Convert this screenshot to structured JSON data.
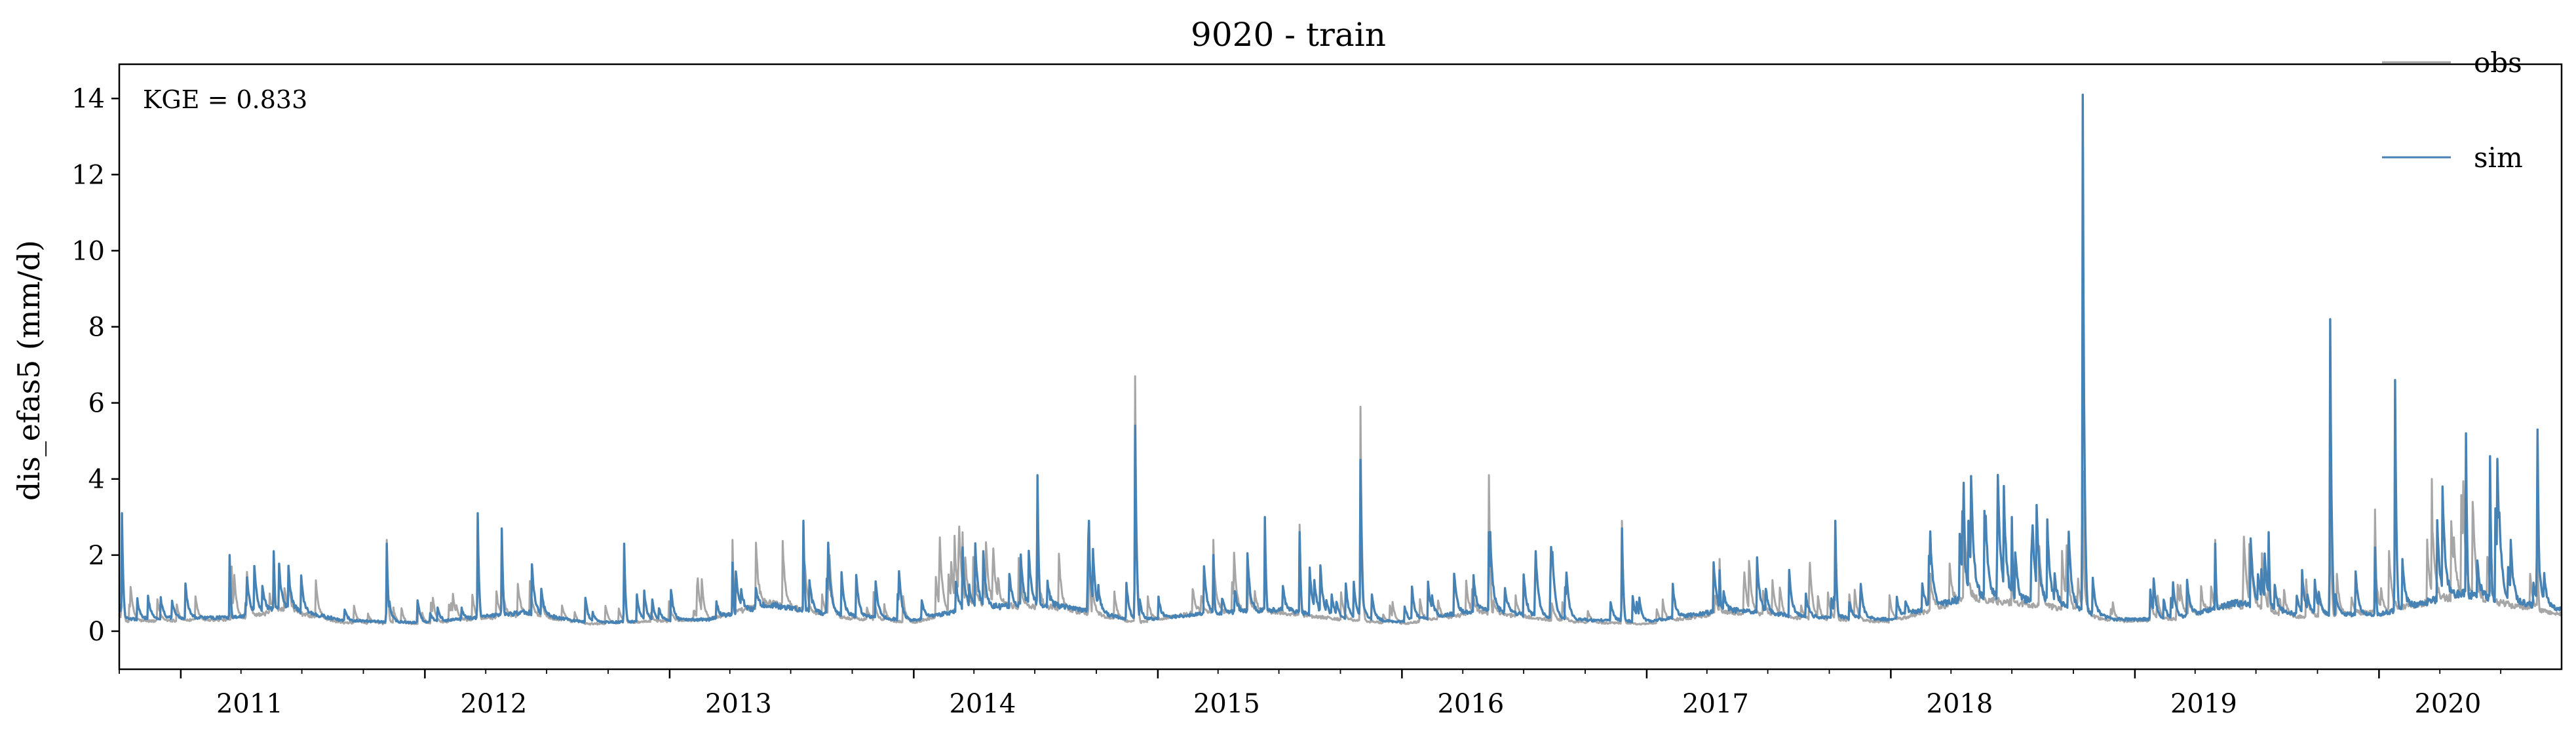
{
  "chart_data": {
    "type": "line",
    "title": "9020 - train",
    "ylabel": "dis_efas5 (mm/d)",
    "xlabel": "",
    "annotation": "KGE = 0.833",
    "ylim": [
      -1.0,
      14.9
    ],
    "xlim": [
      "2010-10-01",
      "2020-09-30"
    ],
    "yticks": [
      0,
      2,
      4,
      6,
      8,
      10,
      12,
      14
    ],
    "xticks": [
      "2011",
      "2012",
      "2013",
      "2014",
      "2015",
      "2016",
      "2017",
      "2018",
      "2019",
      "2020"
    ],
    "legend_position": "top-right",
    "grid": false,
    "series": [
      {
        "name": "obs",
        "color": "#a6a6a6",
        "baseline": [
          [
            "2010-10-01",
            0.4
          ],
          [
            "2011-04-01",
            0.5
          ],
          [
            "2011-06-01",
            0.9
          ],
          [
            "2011-09-01",
            0.35
          ],
          [
            "2012-01-01",
            0.3
          ],
          [
            "2012-06-01",
            0.7
          ],
          [
            "2012-09-01",
            0.3
          ],
          [
            "2013-03-01",
            0.5
          ],
          [
            "2013-06-01",
            1.2
          ],
          [
            "2013-09-01",
            0.6
          ],
          [
            "2014-01-01",
            0.35
          ],
          [
            "2014-04-01",
            1.1
          ],
          [
            "2014-08-01",
            1.0
          ],
          [
            "2014-12-01",
            0.35
          ],
          [
            "2015-03-01",
            0.8
          ],
          [
            "2015-07-01",
            0.8
          ],
          [
            "2015-10-01",
            0.5
          ],
          [
            "2016-01-01",
            0.3
          ],
          [
            "2016-05-01",
            0.8
          ],
          [
            "2016-09-01",
            0.4
          ],
          [
            "2017-01-01",
            0.3
          ],
          [
            "2017-05-01",
            0.8
          ],
          [
            "2017-09-01",
            0.5
          ],
          [
            "2018-01-01",
            0.4
          ],
          [
            "2018-05-01",
            1.4
          ],
          [
            "2018-09-01",
            1.0
          ],
          [
            "2018-12-01",
            0.4
          ],
          [
            "2019-03-01",
            0.5
          ],
          [
            "2019-06-01",
            1.1
          ],
          [
            "2019-09-01",
            0.6
          ],
          [
            "2020-01-01",
            0.8
          ],
          [
            "2020-05-01",
            1.5
          ],
          [
            "2020-09-30",
            0.7
          ]
        ],
        "peaks": [
          [
            "2010-10-05",
            3.0
          ],
          [
            "2011-03-18",
            1.7
          ],
          [
            "2011-05-20",
            2.0
          ],
          [
            "2011-11-05",
            2.4
          ],
          [
            "2012-03-20",
            2.8
          ],
          [
            "2012-04-25",
            2.5
          ],
          [
            "2012-10-25",
            2.1
          ],
          [
            "2013-04-05",
            2.4
          ],
          [
            "2013-07-20",
            2.8
          ],
          [
            "2014-03-15",
            2.6
          ],
          [
            "2014-07-05",
            3.5
          ],
          [
            "2014-09-20",
            2.8
          ],
          [
            "2014-11-28",
            6.7
          ],
          [
            "2015-03-25",
            2.4
          ],
          [
            "2015-06-10",
            2.9
          ],
          [
            "2015-08-01",
            2.8
          ],
          [
            "2015-10-31",
            5.9
          ],
          [
            "2016-05-10",
            4.1
          ],
          [
            "2016-11-25",
            2.9
          ],
          [
            "2017-04-20",
            1.9
          ],
          [
            "2017-10-10",
            2.8
          ],
          [
            "2018-04-20",
            3.2
          ],
          [
            "2018-07-01",
            2.5
          ],
          [
            "2018-10-15",
            4.2
          ],
          [
            "2019-05-01",
            2.4
          ],
          [
            "2019-07-20",
            2.3
          ],
          [
            "2019-10-20",
            3.7
          ],
          [
            "2019-12-26",
            3.2
          ],
          [
            "2020-03-20",
            4.0
          ],
          [
            "2020-05-20",
            3.4
          ],
          [
            "2020-08-25",
            2.0
          ]
        ]
      },
      {
        "name": "sim",
        "color": "#4682b4",
        "baseline": [
          [
            "2010-10-01",
            0.5
          ],
          [
            "2011-04-01",
            0.6
          ],
          [
            "2011-06-01",
            1.0
          ],
          [
            "2011-09-01",
            0.45
          ],
          [
            "2012-01-01",
            0.35
          ],
          [
            "2012-06-01",
            0.8
          ],
          [
            "2012-09-01",
            0.35
          ],
          [
            "2013-03-01",
            0.5
          ],
          [
            "2013-06-01",
            1.1
          ],
          [
            "2013-09-01",
            0.7
          ],
          [
            "2014-01-01",
            0.45
          ],
          [
            "2014-04-01",
            1.0
          ],
          [
            "2014-08-01",
            1.1
          ],
          [
            "2014-12-01",
            0.45
          ],
          [
            "2015-03-01",
            0.7
          ],
          [
            "2015-07-01",
            0.9
          ],
          [
            "2015-10-01",
            0.55
          ],
          [
            "2016-01-01",
            0.4
          ],
          [
            "2016-05-01",
            0.9
          ],
          [
            "2016-09-01",
            0.5
          ],
          [
            "2017-01-01",
            0.4
          ],
          [
            "2017-05-01",
            0.9
          ],
          [
            "2017-09-01",
            0.6
          ],
          [
            "2018-01-01",
            0.5
          ],
          [
            "2018-05-01",
            1.5
          ],
          [
            "2018-09-01",
            1.2
          ],
          [
            "2018-12-01",
            0.5
          ],
          [
            "2019-03-01",
            0.5
          ],
          [
            "2019-06-01",
            1.2
          ],
          [
            "2019-09-01",
            0.7
          ],
          [
            "2020-01-01",
            0.7
          ],
          [
            "2020-05-01",
            1.6
          ],
          [
            "2020-09-30",
            0.9
          ]
        ],
        "peaks": [
          [
            "2010-10-05",
            3.1
          ],
          [
            "2011-03-15",
            2.0
          ],
          [
            "2011-05-20",
            2.1
          ],
          [
            "2011-11-05",
            2.3
          ],
          [
            "2012-03-20",
            3.1
          ],
          [
            "2012-04-25",
            2.7
          ],
          [
            "2012-10-25",
            2.3
          ],
          [
            "2013-04-05",
            1.8
          ],
          [
            "2013-07-20",
            2.9
          ],
          [
            "2014-03-15",
            2.2
          ],
          [
            "2014-07-05",
            4.1
          ],
          [
            "2014-09-20",
            2.9
          ],
          [
            "2014-11-28",
            5.4
          ],
          [
            "2015-03-25",
            2.0
          ],
          [
            "2015-06-10",
            3.0
          ],
          [
            "2015-08-01",
            2.6
          ],
          [
            "2015-10-31",
            4.5
          ],
          [
            "2016-05-10",
            2.6
          ],
          [
            "2016-11-25",
            2.7
          ],
          [
            "2017-04-20",
            1.6
          ],
          [
            "2017-10-10",
            2.9
          ],
          [
            "2018-04-20",
            3.9
          ],
          [
            "2018-07-01",
            3.0
          ],
          [
            "2018-10-15",
            14.1
          ],
          [
            "2019-05-01",
            2.3
          ],
          [
            "2019-07-20",
            2.6
          ],
          [
            "2019-10-20",
            8.2
          ],
          [
            "2019-12-26",
            2.2
          ],
          [
            "2020-01-25",
            6.6
          ],
          [
            "2020-05-10",
            5.2
          ],
          [
            "2020-06-15",
            4.6
          ],
          [
            "2020-08-25",
            5.3
          ]
        ]
      }
    ]
  }
}
